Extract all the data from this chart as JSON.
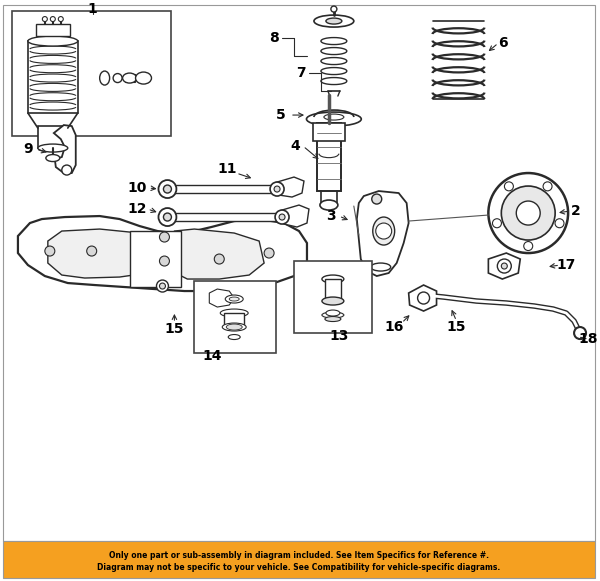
{
  "bg_color": "#ffffff",
  "line_color": "#2a2a2a",
  "footer_bg": "#f5a020",
  "footer_text_line1": "Only one part or sub-assembly in diagram included. See Item Specifics for Reference #.",
  "footer_text_line2": "Diagram may not be specific to your vehicle. See Compatibility for vehicle-specific diagrams.",
  "figure_width": 6.0,
  "figure_height": 5.81,
  "dpi": 100
}
